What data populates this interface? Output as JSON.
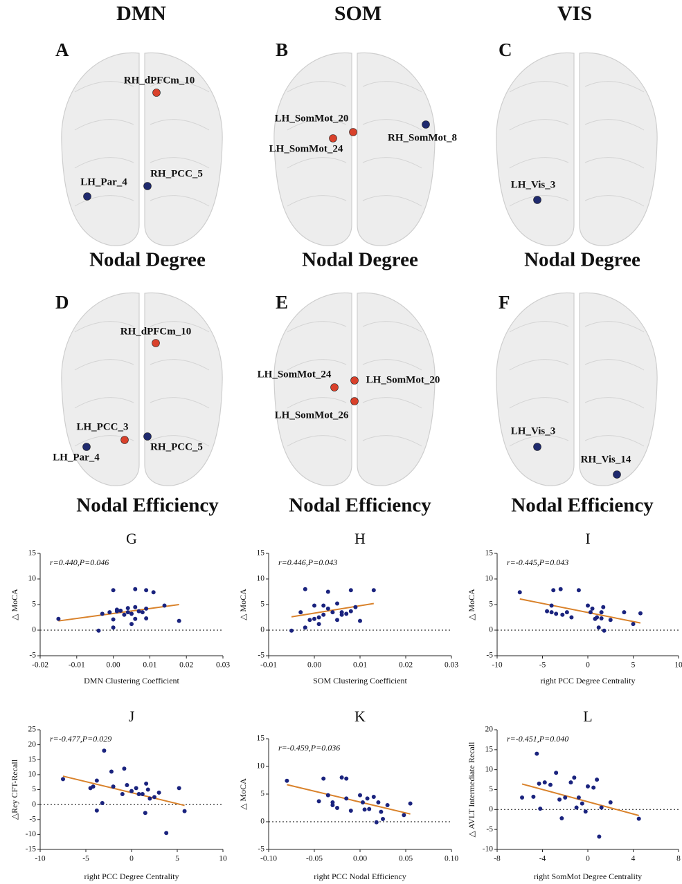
{
  "headers": [
    "DMN",
    "SOM",
    "VIS"
  ],
  "panels": [
    {
      "letter": "A",
      "title": "Nodal Degree",
      "nodes": [
        {
          "label": "RH_dPFCm_10",
          "color": "#d9412b"
        },
        {
          "label": "LH_Par_4",
          "color": "#1f2a6e"
        },
        {
          "label": "RH_PCC_5",
          "color": "#1f2a6e"
        }
      ]
    },
    {
      "letter": "B",
      "title": "Nodal Degree",
      "nodes": [
        {
          "label": "LH_SomMot_20",
          "color": "#d9412b"
        },
        {
          "label": "LH_SomMot_24",
          "color": "#d9412b"
        },
        {
          "label": "RH_SomMot_8",
          "color": "#1f2a6e"
        }
      ]
    },
    {
      "letter": "C",
      "title": "Nodal Degree",
      "nodes": [
        {
          "label": "LH_Vis_3",
          "color": "#1f2a6e"
        }
      ]
    },
    {
      "letter": "D",
      "title": "Nodal Efficiency",
      "nodes": [
        {
          "label": "RH_dPFCm_10",
          "color": "#d9412b"
        },
        {
          "label": "LH_PCC_3",
          "color": "#d9412b"
        },
        {
          "label": "LH_Par_4",
          "color": "#1f2a6e"
        },
        {
          "label": "RH_PCC_5",
          "color": "#1f2a6e"
        }
      ]
    },
    {
      "letter": "E",
      "title": "Nodal Efficiency",
      "nodes": [
        {
          "label": "LH_SomMot_24",
          "color": "#d9412b"
        },
        {
          "label": "LH_SomMot_20",
          "color": "#d9412b"
        },
        {
          "label": "LH_SomMot_26",
          "color": "#d9412b"
        }
      ]
    },
    {
      "letter": "F",
      "title": "Nodal Efficiency",
      "nodes": [
        {
          "label": "LH_Vis_3",
          "color": "#1f2a6e"
        },
        {
          "label": "RH_Vis_14",
          "color": "#1f2a6e"
        }
      ]
    }
  ],
  "chart_data": [
    {
      "type": "scatter",
      "title": "G",
      "annotation": "r=0.440,P=0.046",
      "xlabel": "DMN Clustering Coefficient",
      "ylabel": "△ MoCA",
      "xlim": [
        -0.02,
        0.03
      ],
      "xticks": [
        -0.02,
        -0.01,
        {
          "value": 0,
          "label": "0.00"
        },
        0.01,
        0.02,
        0.03
      ],
      "ylim": [
        -5,
        15
      ],
      "yticks": [
        -5,
        0,
        5,
        10,
        15
      ],
      "hline": 0,
      "point_color": "#1a237e",
      "x": [
        -0.015,
        -0.004,
        -0.003,
        -0.001,
        0,
        0,
        0.001,
        0.001,
        0.002,
        0.003,
        0.004,
        0.004,
        0.005,
        0.005,
        0.006,
        0.006,
        0.006,
        0.007,
        0.008,
        0.009,
        0.009,
        0.009,
        0.011,
        0.014,
        0.018,
        0
      ],
      "y": [
        2.2,
        -0.1,
        3.2,
        3.5,
        7.8,
        2.1,
        4,
        3.7,
        3.8,
        3,
        3.5,
        4.3,
        3.2,
        1.2,
        8,
        4.5,
        2.2,
        3.7,
        3.5,
        7.8,
        4.2,
        2.3,
        7.4,
        4.8,
        1.8,
        0.5
      ],
      "fit": {
        "x": [
          -0.015,
          0.018
        ],
        "y": [
          1.8,
          5.0
        ],
        "color": "#d9822b"
      }
    },
    {
      "type": "scatter",
      "title": "H",
      "annotation": "r=0.446,P=0.043",
      "xlabel": "SOM Clustering Coefficient",
      "ylabel": "△ MoCA",
      "xlim": [
        -0.01,
        0.03
      ],
      "xticks": [
        -0.01,
        {
          "value": 0,
          "label": "0.00"
        },
        0.01,
        0.02,
        0.03
      ],
      "ylim": [
        -5,
        15
      ],
      "yticks": [
        -5,
        0,
        5,
        10,
        15
      ],
      "hline": 0,
      "point_color": "#1a237e",
      "x": [
        -0.005,
        -0.003,
        -0.002,
        -0.002,
        -0.001,
        0,
        0,
        0.001,
        0.001,
        0.002,
        0.003,
        0.003,
        0.004,
        0.005,
        0.005,
        0.006,
        0.006,
        0.007,
        0.008,
        0.008,
        0.009,
        0.01,
        0.013,
        0.002
      ],
      "y": [
        -0.1,
        3.5,
        8,
        0.5,
        2,
        4.8,
        2.2,
        2.5,
        1.2,
        3,
        7.5,
        4.2,
        3.5,
        5.2,
        2,
        3.5,
        3,
        3.2,
        7.8,
        3.7,
        4.5,
        1.8,
        7.8,
        4.8
      ],
      "fit": {
        "x": [
          -0.005,
          0.013
        ],
        "y": [
          2.6,
          5.2
        ],
        "color": "#d9822b"
      }
    },
    {
      "type": "scatter",
      "title": "I",
      "annotation": "r=-0.445,P=0.043",
      "xlabel": "right PCC Degree Centrality",
      "ylabel": "△ MoCA",
      "xlim": [
        -10,
        10
      ],
      "xticks": [
        -10,
        -5,
        0,
        5,
        10
      ],
      "ylim": [
        -5,
        15
      ],
      "yticks": [
        -5,
        0,
        5,
        10,
        15
      ],
      "hline": 0,
      "point_color": "#1a237e",
      "x": [
        -7.5,
        -4.5,
        -4,
        -4,
        -3.8,
        -3.5,
        -3,
        -2.8,
        -2.3,
        -1.8,
        -1,
        0,
        0.3,
        0.5,
        1,
        1.2,
        1.5,
        1.5,
        1.7,
        1.8,
        2.5,
        4,
        5,
        5.8,
        0.8
      ],
      "y": [
        7.4,
        3.7,
        3.5,
        4.8,
        7.8,
        3.2,
        8,
        3,
        3.5,
        2.5,
        7.8,
        4.8,
        3.5,
        4.2,
        2.5,
        0.5,
        2.3,
        3.5,
        4.5,
        -0.1,
        2,
        3.5,
        1.2,
        3.3,
        2.2
      ],
      "fit": {
        "x": [
          -7.5,
          5.8
        ],
        "y": [
          6.1,
          1.4
        ],
        "color": "#d9822b"
      }
    },
    {
      "type": "scatter",
      "title": "J",
      "annotation": "r=-0.477,P=0.029",
      "xlabel": "right PCC Degree Centrality",
      "ylabel": "△Rey CFT-Recall",
      "xlim": [
        -10,
        10
      ],
      "xticks": [
        -10,
        -5,
        0,
        5,
        10
      ],
      "ylim": [
        -15,
        25
      ],
      "yticks": [
        -15,
        -10,
        -5,
        0,
        5,
        10,
        15,
        20,
        25
      ],
      "hline": 0,
      "point_color": "#1a237e",
      "x": [
        -7.5,
        -4.5,
        -4.2,
        -3.8,
        -3.8,
        -3.2,
        -3,
        -2.2,
        -2,
        -1,
        -0.8,
        -0.5,
        0,
        0.5,
        0.8,
        1.2,
        1.5,
        1.6,
        1.8,
        2,
        2.5,
        3,
        3.8,
        5.2,
        5.8
      ],
      "y": [
        8.5,
        5.5,
        6,
        8,
        -2,
        0.5,
        18,
        11,
        6,
        3.5,
        12,
        6.5,
        4.5,
        5.5,
        3.5,
        3.5,
        -2.8,
        7,
        5,
        2,
        2.5,
        4,
        -9.5,
        5.5,
        -2.2
      ],
      "fit": {
        "x": [
          -7.5,
          5.8
        ],
        "y": [
          9.5,
          -0.3
        ],
        "color": "#d9822b"
      }
    },
    {
      "type": "scatter",
      "title": "K",
      "annotation": "r=-0.459,P=0.036",
      "xlabel": "right PCC Nodal Efficiency",
      "ylabel": "△ MoCA",
      "xlim": [
        -0.1,
        0.1
      ],
      "xticks": [
        {
          "value": -0.1,
          "label": "-0.10"
        },
        -0.05,
        {
          "value": 0,
          "label": "0.00"
        },
        0.05,
        {
          "value": 0.1,
          "label": "0.10"
        }
      ],
      "ylim": [
        -5,
        15
      ],
      "yticks": [
        -5,
        0,
        5,
        10,
        15
      ],
      "hline": 0,
      "point_color": "#1a237e",
      "x": [
        -0.08,
        -0.045,
        -0.04,
        -0.035,
        -0.03,
        -0.03,
        -0.025,
        -0.02,
        -0.015,
        -0.015,
        -0.01,
        0,
        0.003,
        0.005,
        0.008,
        0.01,
        0.015,
        0.018,
        0.02,
        0.023,
        0.025,
        0.03,
        0.048,
        0.055
      ],
      "y": [
        7.4,
        3.7,
        7.8,
        4.8,
        3.5,
        3,
        2.5,
        8,
        7.8,
        4.2,
        2,
        4.8,
        3.5,
        2.2,
        4.2,
        2.3,
        4.5,
        -0.1,
        3.5,
        1.8,
        0.5,
        3,
        1.2,
        3.3
      ],
      "fit": {
        "x": [
          -0.08,
          0.055
        ],
        "y": [
          6.7,
          1.4
        ],
        "color": "#d9822b"
      }
    },
    {
      "type": "scatter",
      "title": "L",
      "annotation": "r=-0.451,P=0.040",
      "xlabel": "right SomMot Degree Centrality",
      "ylabel": "△ AVLT Intermediate Recall",
      "xlim": [
        -8,
        8
      ],
      "xticks": [
        -8,
        -4,
        0,
        4,
        8
      ],
      "ylim": [
        -10,
        20
      ],
      "yticks": [
        -10,
        -5,
        0,
        5,
        10,
        15,
        20
      ],
      "hline": 0,
      "point_color": "#1a237e",
      "x": [
        -5.8,
        -4.8,
        -4.5,
        -4.3,
        -4.2,
        -3.8,
        -3.3,
        -2.8,
        -2.5,
        -2.3,
        -2,
        -1.5,
        -1.2,
        -1,
        -0.8,
        -0.5,
        -0.2,
        0,
        0.5,
        0.8,
        1,
        1.2,
        2,
        4.5
      ],
      "y": [
        3,
        3.2,
        14,
        6.5,
        0.2,
        6.8,
        6.2,
        9.2,
        2.5,
        -2.2,
        3,
        6.8,
        8,
        0.5,
        3,
        1.5,
        -0.5,
        5.8,
        5.5,
        7.5,
        -6.8,
        0.5,
        1.8,
        -2.3
      ],
      "fit": {
        "x": [
          -5.8,
          4.5
        ],
        "y": [
          6.4,
          -1.5
        ],
        "color": "#d9822b"
      }
    }
  ]
}
